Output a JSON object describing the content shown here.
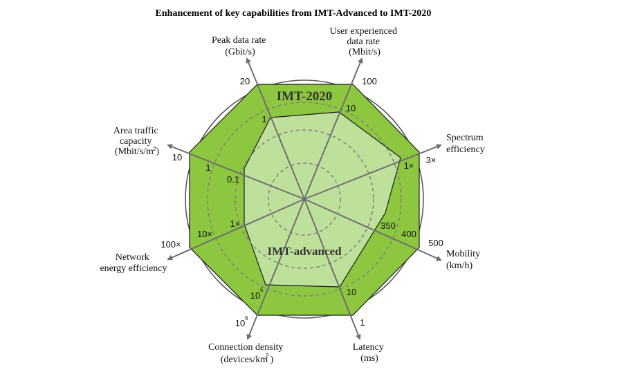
{
  "title": "Enhancement of key capabilities from IMT-Advanced to IMT-2020",
  "series": {
    "imt2020": {
      "label": "IMT-2020",
      "color": "#8dc63f"
    },
    "imt_advanced": {
      "label": "IMT-advanced",
      "color": "#bfe09a"
    }
  },
  "axes": [
    {
      "key": "peak",
      "label": [
        "Peak data rate",
        "(Gbit/s)"
      ],
      "imt2020": "20",
      "imt_advanced": "1"
    },
    {
      "key": "user_rate",
      "label": [
        "User experienced",
        "data rate",
        "(Mbit/s)"
      ],
      "imt2020": "100",
      "imt_advanced": "10"
    },
    {
      "key": "spectrum",
      "label": [
        "Spectrum",
        "efficiency"
      ],
      "imt2020": "3×",
      "imt_advanced": "1×"
    },
    {
      "key": "mobility",
      "label": [
        "Mobility",
        "(km/h)"
      ],
      "imt2020": "500",
      "imt_advanced": "350",
      "extra_tick": "400"
    },
    {
      "key": "latency",
      "label": [
        "Latency",
        "(ms)"
      ],
      "imt2020": "1",
      "imt_advanced": "10"
    },
    {
      "key": "connection",
      "label": [
        "Connection density",
        "(devices/km )"
      ],
      "label_sup": "2",
      "imt2020": "10",
      "imt2020_sup": "6",
      "imt_advanced": "10",
      "imt_advanced_sup": "5"
    },
    {
      "key": "energy",
      "label": [
        "Network",
        "energy efficiency"
      ],
      "imt2020": "100×",
      "imt_advanced": "1×",
      "extra_tick": "10×"
    },
    {
      "key": "area",
      "label": [
        "Area traffic",
        "capacity",
        "(Mbit/s/m )"
      ],
      "label_sup": "2",
      "imt2020": "10",
      "imt_advanced": "0.1",
      "extra_tick": "1"
    }
  ]
}
